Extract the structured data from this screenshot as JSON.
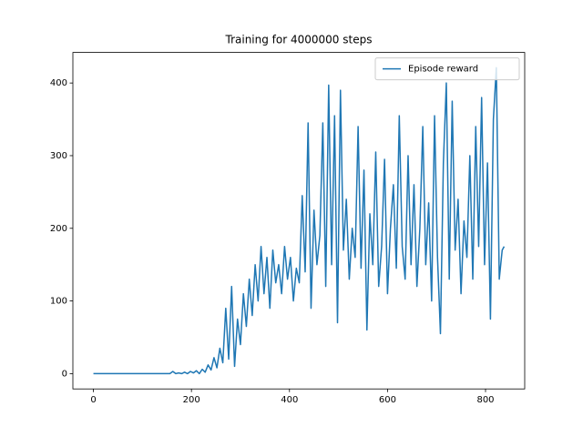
{
  "chart_data": {
    "type": "line",
    "title": "Training for 4000000 steps",
    "x": [
      0,
      6,
      12,
      18,
      24,
      30,
      36,
      42,
      48,
      54,
      60,
      66,
      72,
      78,
      84,
      90,
      96,
      102,
      108,
      114,
      120,
      126,
      132,
      138,
      144,
      150,
      156,
      162,
      168,
      174,
      180,
      186,
      192,
      198,
      204,
      210,
      216,
      222,
      228,
      234,
      240,
      246,
      252,
      258,
      264,
      270,
      276,
      282,
      288,
      294,
      300,
      306,
      312,
      318,
      324,
      330,
      336,
      342,
      348,
      354,
      360,
      366,
      372,
      378,
      384,
      390,
      396,
      402,
      408,
      414,
      420,
      426,
      432,
      438,
      444,
      450,
      456,
      462,
      468,
      474,
      480,
      486,
      492,
      498,
      504,
      510,
      516,
      522,
      528,
      534,
      540,
      546,
      552,
      558,
      564,
      570,
      576,
      582,
      588,
      594,
      600,
      606,
      612,
      618,
      624,
      630,
      636,
      642,
      648,
      654,
      660,
      666,
      672,
      678,
      684,
      690,
      696,
      702,
      708,
      714,
      720,
      726,
      732,
      738,
      744,
      750,
      756,
      762,
      768,
      774,
      780,
      786,
      792,
      798,
      804,
      810,
      816,
      822,
      828,
      834,
      838
    ],
    "series": [
      {
        "name": "Episode reward",
        "color": "#1f77b4",
        "values": [
          0,
          0,
          0,
          0,
          0,
          0,
          0,
          0,
          0,
          0,
          0,
          0,
          0,
          0,
          0,
          0,
          0,
          0,
          0,
          0,
          0,
          0,
          0,
          0,
          0,
          0,
          0,
          3,
          0,
          1,
          0,
          2,
          0,
          3,
          1,
          4,
          0,
          6,
          2,
          12,
          5,
          22,
          8,
          35,
          15,
          90,
          20,
          120,
          10,
          75,
          40,
          110,
          65,
          130,
          80,
          150,
          100,
          175,
          110,
          160,
          90,
          170,
          125,
          150,
          110,
          175,
          130,
          160,
          100,
          145,
          125,
          245,
          140,
          345,
          90,
          225,
          150,
          190,
          345,
          120,
          397,
          150,
          355,
          70,
          390,
          170,
          240,
          130,
          200,
          160,
          340,
          145,
          280,
          60,
          220,
          150,
          305,
          120,
          175,
          295,
          110,
          200,
          260,
          145,
          355,
          175,
          130,
          300,
          150,
          260,
          120,
          200,
          340,
          150,
          235,
          100,
          355,
          160,
          55,
          290,
          400,
          130,
          375,
          170,
          240,
          110,
          210,
          160,
          300,
          130,
          340,
          175,
          380,
          150,
          290,
          75,
          350,
          421,
          130,
          170,
          175
        ]
      }
    ],
    "xlim": [
      -41.9,
      879.9
    ],
    "ylim": [
      -21.05,
      442.05
    ],
    "xticks": [
      0,
      200,
      400,
      600,
      800
    ],
    "yticks": [
      0,
      100,
      200,
      300,
      400
    ],
    "legend": "upper right"
  }
}
